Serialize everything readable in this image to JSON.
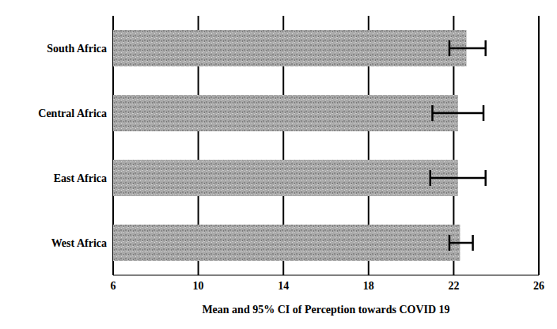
{
  "chart_data": {
    "type": "bar",
    "orientation": "horizontal",
    "categories": [
      "South Africa",
      "Central Africa",
      "East Africa",
      "West Africa"
    ],
    "values": [
      22.6,
      22.2,
      22.2,
      22.3
    ],
    "ci_low": [
      21.8,
      21.0,
      20.9,
      21.8
    ],
    "ci_high": [
      23.5,
      23.4,
      23.5,
      22.9
    ],
    "color": "#a9a9a9",
    "xlabel": "Mean and 95% CI of Perception towards COVID 19",
    "xlim": [
      6,
      26
    ],
    "xticks": [
      6,
      10,
      14,
      18,
      22,
      26
    ],
    "grid": true
  }
}
